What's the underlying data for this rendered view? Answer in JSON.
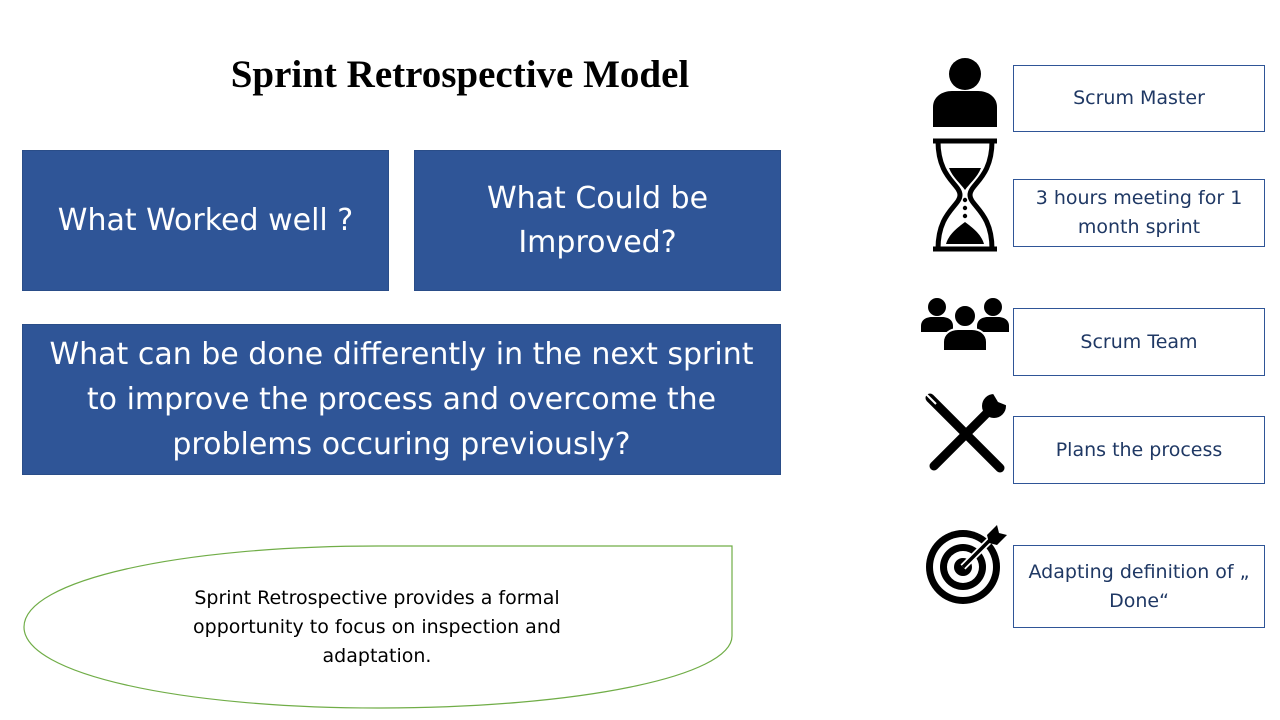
{
  "title": "Sprint Retrospective Model",
  "questions": {
    "worked_well": "What  Worked well ?",
    "could_improve": "What  Could be Improved?",
    "do_differently": "What can be done differently in the next sprint to improve the process and  overcome the problems occuring previously?"
  },
  "note": "Sprint Retrospective provides a formal opportunity to focus on inspection and adaptation.",
  "aspects": [
    {
      "icon": "person-icon",
      "label": "Scrum Master"
    },
    {
      "icon": "hourglass-icon",
      "label": "3 hours meeting for 1 month sprint"
    },
    {
      "icon": "team-icon",
      "label": "Scrum Team"
    },
    {
      "icon": "tools-icon",
      "label": "Plans the process"
    },
    {
      "icon": "target-icon",
      "label": "Adapting definition of „ Done“"
    }
  ],
  "colors": {
    "box_fill": "#2f5597",
    "label_text": "#1f3864",
    "oval_stroke": "#70ad47"
  }
}
